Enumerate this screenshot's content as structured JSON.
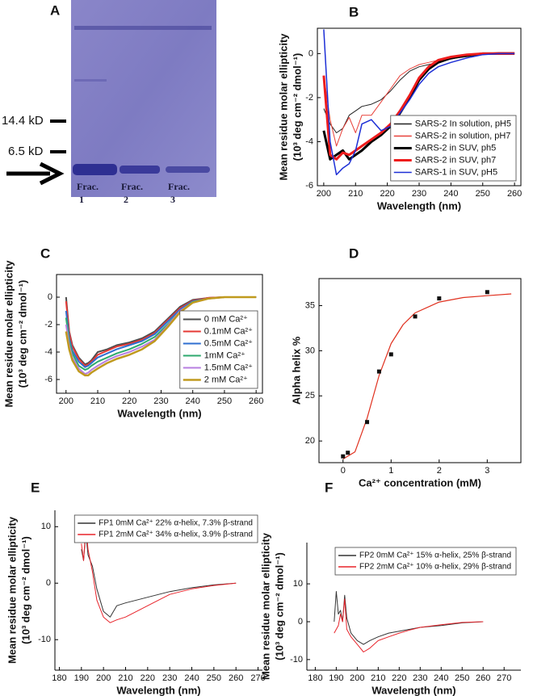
{
  "gel": {
    "label": "A",
    "markers": [
      "14.4 kD",
      "6.5 kD"
    ],
    "lanes": [
      [
        "Frac.",
        "1"
      ],
      [
        "Frac.",
        "2"
      ],
      [
        "Frac.",
        "3"
      ]
    ]
  },
  "chart_data": [
    {
      "type": "line",
      "label": "B",
      "xlabel": "Wavelength (nm)",
      "ylabel": [
        "Mean residue molar ellipticity",
        "(10³ deg cm⁻² dmol⁻¹)"
      ],
      "xlim": [
        198,
        262
      ],
      "ylim": [
        -6,
        1.15
      ],
      "xticks": [
        200,
        210,
        220,
        230,
        240,
        250,
        260
      ],
      "yticks": [
        -6,
        -4,
        -2,
        0
      ],
      "frame": true,
      "legend": "lower right",
      "series": [
        {
          "name": "SARS-2 In solution, pH5",
          "color": "#222222",
          "width": 1,
          "x": [
            200,
            202,
            204,
            206,
            208,
            210,
            212,
            215,
            218,
            221,
            224,
            227,
            230,
            233,
            236,
            240,
            245,
            250,
            255,
            260
          ],
          "values": [
            -2.5,
            -3.2,
            -3.6,
            -3.4,
            -2.8,
            -2.6,
            -2.4,
            -2.3,
            -2.1,
            -1.7,
            -1.2,
            -0.8,
            -0.6,
            -0.5,
            -0.4,
            -0.25,
            -0.1,
            0,
            0,
            0
          ]
        },
        {
          "name": "SARS-2 in solution, pH7",
          "color": "#e8413a",
          "width": 1,
          "x": [
            200,
            202,
            204,
            206,
            208,
            210,
            212,
            215,
            218,
            221,
            224,
            227,
            230,
            233,
            236,
            240,
            245,
            250,
            255,
            260
          ],
          "values": [
            -1,
            -3,
            -4.2,
            -3.4,
            -2.9,
            -3.6,
            -2.8,
            -2.8,
            -2.2,
            -1.6,
            -1.0,
            -0.7,
            -0.5,
            -0.4,
            -0.3,
            -0.2,
            -0.05,
            0,
            0.05,
            0.05
          ]
        },
        {
          "name": "SARS-2 in SUV, ph5",
          "color": "#000000",
          "width": 3,
          "x": [
            200,
            202,
            204,
            206,
            208,
            210,
            212,
            215,
            218,
            221,
            224,
            227,
            230,
            233,
            236,
            240,
            245,
            250,
            255,
            260
          ],
          "values": [
            -3.5,
            -4.8,
            -4.6,
            -4.4,
            -4.8,
            -4.6,
            -4.4,
            -4.0,
            -3.7,
            -3.3,
            -2.7,
            -2.0,
            -1.2,
            -0.7,
            -0.4,
            -0.2,
            -0.1,
            0,
            0,
            0
          ]
        },
        {
          "name": "SARS-2 in SUV, ph7",
          "color": "#ee1c1c",
          "width": 3,
          "x": [
            200,
            202,
            204,
            206,
            208,
            210,
            212,
            215,
            218,
            221,
            224,
            227,
            230,
            233,
            236,
            240,
            245,
            250,
            255,
            260
          ],
          "values": [
            -1,
            -4.6,
            -4.8,
            -4.5,
            -4.6,
            -4.4,
            -4.2,
            -3.9,
            -3.6,
            -3.2,
            -2.6,
            -1.9,
            -1.1,
            -0.6,
            -0.3,
            -0.15,
            -0.05,
            0,
            0,
            0
          ]
        },
        {
          "name": "SARS-1 in SUV, pH5",
          "color": "#1d2fd6",
          "width": 1.5,
          "x": [
            200,
            202,
            204,
            206,
            208,
            210,
            212,
            215,
            218,
            221,
            224,
            227,
            230,
            233,
            236,
            240,
            245,
            250,
            255,
            260
          ],
          "values": [
            1.1,
            -4,
            -5.5,
            -5.2,
            -5.0,
            -4.4,
            -3.2,
            -3.0,
            -3.5,
            -3.3,
            -2.7,
            -2.1,
            -1.4,
            -0.9,
            -0.6,
            -0.4,
            -0.2,
            -0.05,
            0,
            0
          ]
        }
      ]
    },
    {
      "type": "line",
      "label": "C",
      "xlabel": "Wavelength (nm)",
      "ylabel": [
        "Mean residue molar ellipticity",
        "(10³ deg cm⁻² dmol⁻¹)"
      ],
      "xlim": [
        197,
        262
      ],
      "ylim": [
        -7,
        1.65
      ],
      "xticks": [
        200,
        210,
        220,
        230,
        240,
        250,
        260
      ],
      "yticks": [
        -6,
        -4,
        -2,
        0
      ],
      "frame": true,
      "legend": "lower right",
      "series": [
        {
          "name": "0 mM Ca²⁺",
          "color": "#4d4d4d",
          "width": 2,
          "x": [
            200,
            201,
            202,
            204,
            206,
            207,
            208,
            210,
            213,
            216,
            220,
            224,
            228,
            232,
            236,
            240,
            245,
            250,
            255,
            260
          ],
          "values": [
            0,
            -2.5,
            -3.5,
            -4.4,
            -4.9,
            -4.8,
            -4.6,
            -4.0,
            -3.8,
            -3.5,
            -3.3,
            -3.0,
            -2.5,
            -1.6,
            -0.7,
            -0.2,
            -0.05,
            0,
            0,
            0
          ]
        },
        {
          "name": "0.1mM Ca²⁺",
          "color": "#e53935",
          "width": 2,
          "x": [
            200,
            201,
            202,
            204,
            206,
            207,
            208,
            210,
            213,
            216,
            220,
            224,
            228,
            232,
            236,
            240,
            245,
            250,
            255,
            260
          ],
          "values": [
            -0.3,
            -2.6,
            -3.6,
            -4.5,
            -5.0,
            -4.9,
            -4.7,
            -4.2,
            -3.9,
            -3.6,
            -3.4,
            -3.1,
            -2.6,
            -1.7,
            -0.8,
            -0.25,
            -0.05,
            0,
            0,
            0
          ]
        },
        {
          "name": "0.5mM Ca²⁺",
          "color": "#2f6fd0",
          "width": 2,
          "x": [
            200,
            201,
            202,
            204,
            206,
            207,
            208,
            210,
            213,
            216,
            220,
            224,
            228,
            232,
            236,
            240,
            245,
            250,
            255,
            260
          ],
          "values": [
            -1,
            -3.0,
            -3.9,
            -4.7,
            -5.1,
            -5.0,
            -4.8,
            -4.4,
            -4.1,
            -3.8,
            -3.5,
            -3.2,
            -2.7,
            -1.8,
            -0.9,
            -0.3,
            -0.1,
            0,
            0,
            0
          ]
        },
        {
          "name": "1mM Ca²⁺",
          "color": "#2eaa6e",
          "width": 2,
          "x": [
            200,
            201,
            202,
            204,
            206,
            207,
            208,
            210,
            213,
            216,
            220,
            224,
            228,
            232,
            236,
            240,
            245,
            250,
            255,
            260
          ],
          "values": [
            -1.5,
            -3.2,
            -4.1,
            -5.0,
            -5.3,
            -5.2,
            -5.0,
            -4.7,
            -4.4,
            -4.1,
            -3.8,
            -3.4,
            -2.9,
            -2.0,
            -1.0,
            -0.35,
            -0.1,
            0,
            0,
            0
          ]
        },
        {
          "name": "1.5mM Ca²⁺",
          "color": "#b77fe0",
          "width": 2,
          "x": [
            200,
            201,
            202,
            204,
            206,
            207,
            208,
            210,
            213,
            216,
            220,
            224,
            228,
            232,
            236,
            240,
            245,
            250,
            255,
            260
          ],
          "values": [
            -2,
            -3.5,
            -4.4,
            -5.2,
            -5.6,
            -5.5,
            -5.3,
            -5.0,
            -4.6,
            -4.3,
            -4.0,
            -3.6,
            -3.1,
            -2.1,
            -1.0,
            -0.4,
            -0.1,
            0,
            0,
            0
          ]
        },
        {
          "name": "2 mM Ca²⁺",
          "color": "#c09a1e",
          "width": 2.5,
          "x": [
            200,
            201,
            202,
            204,
            206,
            207,
            208,
            210,
            213,
            216,
            220,
            224,
            228,
            232,
            236,
            240,
            245,
            250,
            255,
            260
          ],
          "values": [
            -2.5,
            -3.8,
            -4.6,
            -5.4,
            -5.7,
            -5.7,
            -5.5,
            -5.2,
            -4.8,
            -4.5,
            -4.2,
            -3.8,
            -3.2,
            -2.2,
            -1.1,
            -0.4,
            -0.1,
            0,
            0,
            0
          ]
        }
      ]
    },
    {
      "type": "line",
      "label": "D",
      "xlabel": "Ca²⁺ concentration (mM)",
      "ylabel": [
        "Alpha helix %"
      ],
      "xlim": [
        -0.5,
        3.7
      ],
      "ylim": [
        17.6,
        38
      ],
      "xticks": [
        0,
        1,
        2,
        3
      ],
      "yticks": [
        20,
        25,
        30,
        35
      ],
      "frame": true,
      "series": [
        {
          "color": "#e0301e",
          "width": 1.2,
          "mode": "lines",
          "x": [
            0,
            0.25,
            0.5,
            0.75,
            1,
            1.25,
            1.5,
            2,
            2.5,
            3,
            3.5
          ],
          "values": [
            18.0,
            18.8,
            22.5,
            27.25,
            30.8,
            32.9,
            34.2,
            35.4,
            35.9,
            36.1,
            36.3
          ]
        },
        {
          "color": "#111111",
          "mode": "markers",
          "x": [
            0,
            0.1,
            0.5,
            0.75,
            1,
            1.5,
            2,
            3
          ],
          "values": [
            18.3,
            18.7,
            22.1,
            27.7,
            29.6,
            33.8,
            35.8,
            36.5
          ]
        }
      ]
    },
    {
      "type": "line",
      "label": "E",
      "xlabel": "Wavelength (nm)",
      "ylabel": [
        "Mean residue molar ellipticity",
        "(10³ deg cm⁻² dmol⁻¹)"
      ],
      "xlim": [
        178,
        272
      ],
      "ylim": [
        -15.4,
        12.9
      ],
      "xticks": [
        180,
        190,
        200,
        210,
        220,
        230,
        240,
        250,
        260,
        270
      ],
      "yticks": [
        -10,
        0,
        10
      ],
      "frame": false,
      "legend": "upper right",
      "series": [
        {
          "name": "FP1 0mM Ca²⁺ 22% α-helix, 7.3% β-strand",
          "color": "#333333",
          "width": 1,
          "x": [
            190,
            191,
            192,
            193,
            195,
            197,
            200,
            203,
            206,
            210,
            215,
            220,
            225,
            230,
            240,
            250,
            260
          ],
          "values": [
            6,
            4,
            9,
            5,
            3,
            -1,
            -5,
            -6,
            -4,
            -3.5,
            -3,
            -2.5,
            -2,
            -1.5,
            -0.8,
            -0.3,
            0
          ]
        },
        {
          "name": "FP1 2mM Ca²⁺ 34% α-helix, 3.9% β-strand",
          "color": "#e8232a",
          "width": 1,
          "x": [
            190,
            191,
            192,
            193,
            195,
            197,
            200,
            203,
            206,
            210,
            215,
            220,
            225,
            230,
            240,
            250,
            260
          ],
          "values": [
            7,
            4,
            10,
            6,
            2,
            -3,
            -6,
            -7,
            -6.5,
            -6,
            -5,
            -4,
            -3,
            -2,
            -1,
            -0.4,
            0
          ]
        }
      ]
    },
    {
      "type": "line",
      "label": "F",
      "xlabel": "Wavelength (nm)",
      "ylabel": [
        "Mean residue molar ellipticity",
        "(10³ deg cm⁻² dmol⁻¹)"
      ],
      "xlim": [
        176,
        278
      ],
      "ylim": [
        -12.8,
        20.9
      ],
      "xticks": [
        180,
        190,
        200,
        210,
        220,
        230,
        240,
        250,
        260,
        270
      ],
      "yticks": [
        -10,
        0,
        10
      ],
      "frame": false,
      "legend": "upper right",
      "series": [
        {
          "name": "FP2 0mM Ca²⁺ 15% α-helix, 25% β-strand",
          "color": "#333333",
          "width": 1,
          "x": [
            189,
            190,
            191,
            192,
            193,
            194,
            195,
            197,
            200,
            203,
            206,
            210,
            215,
            220,
            225,
            230,
            240,
            250,
            260
          ],
          "values": [
            0,
            8,
            2,
            3,
            0,
            7,
            1,
            -3,
            -5,
            -6,
            -5,
            -4,
            -3,
            -2.5,
            -2,
            -1.5,
            -1,
            -0.3,
            0
          ]
        },
        {
          "name": "FP2 2mM Ca²⁺ 10% α-helix, 29% β-strand",
          "color": "#e8232a",
          "width": 1,
          "x": [
            189,
            190,
            191,
            192,
            193,
            194,
            195,
            197,
            200,
            203,
            206,
            210,
            215,
            220,
            225,
            230,
            240,
            250,
            260
          ],
          "values": [
            -3,
            -2,
            -1,
            2,
            0,
            6,
            -2,
            -4,
            -6,
            -8,
            -7,
            -5,
            -4,
            -3,
            -2.2,
            -1.5,
            -0.8,
            -0.2,
            0
          ]
        }
      ]
    }
  ]
}
